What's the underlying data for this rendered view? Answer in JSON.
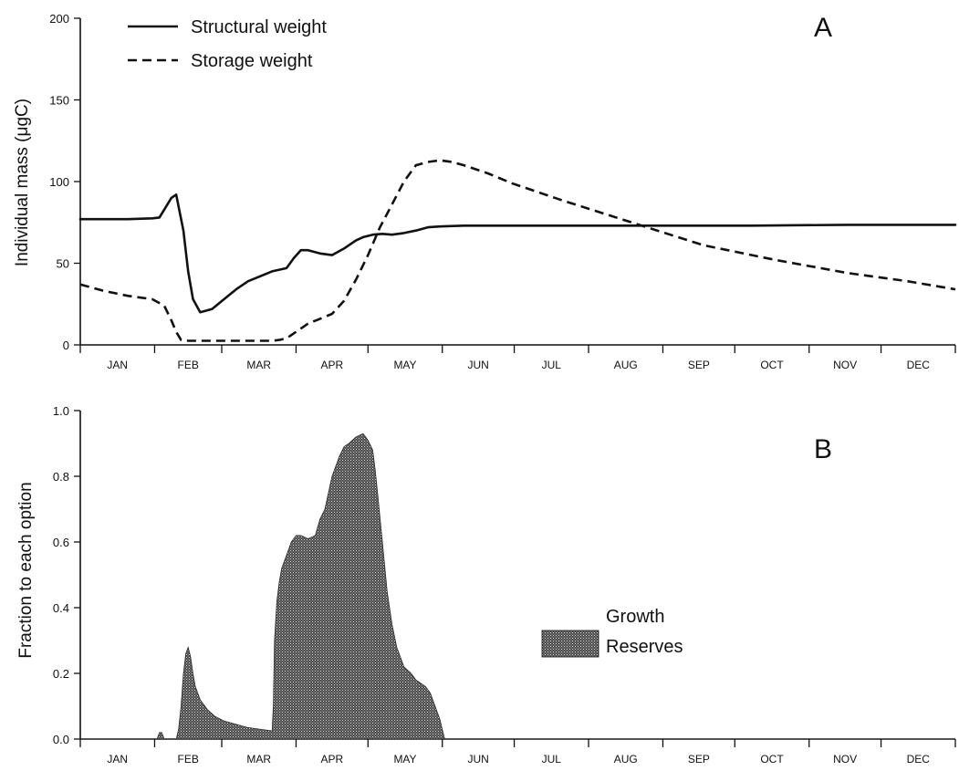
{
  "chart_data": [
    {
      "type": "line",
      "panel_label": "A",
      "ylabel": "Individual mass (μgC)",
      "xlabel": "",
      "ylim": [
        0,
        200
      ],
      "yticks": [
        "0",
        "50",
        "100",
        "150",
        "200"
      ],
      "ytick_values": [
        0,
        50,
        100,
        150,
        200
      ],
      "xlim": [
        0,
        365
      ],
      "x_units": "day of year",
      "x_month_labels": [
        "JAN",
        "FEB",
        "MAR",
        "APR",
        "MAY",
        "JUN",
        "JUL",
        "AUG",
        "SEP",
        "OCT",
        "NOV",
        "DEC"
      ],
      "legend_position": "top-left",
      "grid": false,
      "series": [
        {
          "name": "Structural weight",
          "style": "solid",
          "x": [
            0,
            10,
            20,
            30,
            33,
            38,
            40,
            43,
            45,
            47,
            50,
            55,
            60,
            65,
            70,
            75,
            80,
            86,
            89,
            92,
            95,
            100,
            105,
            110,
            115,
            118,
            122,
            126,
            130,
            135,
            140,
            145,
            150,
            160,
            180,
            200,
            240,
            280,
            320,
            365
          ],
          "y": [
            77,
            77,
            77,
            77.5,
            78,
            90,
            92,
            70,
            45,
            28,
            20,
            22,
            28,
            34,
            39,
            42,
            45,
            47,
            53,
            58,
            58,
            56,
            55,
            59,
            64,
            66,
            67.5,
            68,
            67.5,
            68.5,
            70,
            72,
            72.5,
            73,
            73,
            73,
            73,
            73,
            73.5,
            73.5
          ]
        },
        {
          "name": "Storage weight",
          "style": "dashed",
          "x": [
            0,
            10,
            20,
            30,
            35,
            38,
            40,
            42,
            45,
            50,
            60,
            70,
            80,
            83,
            86,
            90,
            95,
            100,
            105,
            110,
            115,
            120,
            125,
            130,
            135,
            140,
            145,
            150,
            155,
            160,
            170,
            180,
            200,
            230,
            260,
            290,
            320,
            345,
            365
          ],
          "y": [
            37,
            33,
            30,
            28,
            24,
            15,
            8,
            3,
            2.5,
            2.5,
            2.5,
            2.5,
            2.5,
            3,
            4,
            8,
            13,
            16,
            19,
            27,
            40,
            55,
            72,
            86,
            100,
            110,
            112,
            113,
            112,
            110,
            105,
            99,
            89,
            75,
            61,
            52,
            44,
            39,
            34
          ]
        }
      ]
    },
    {
      "type": "area",
      "panel_label": "B",
      "ylabel": "Fraction to each option",
      "xlabel": "",
      "ylim": [
        0,
        1
      ],
      "yticks": [
        "0.0",
        "0.2",
        "0.4",
        "0.6",
        "0.8",
        "1.0"
      ],
      "ytick_values": [
        0,
        0.2,
        0.4,
        0.6,
        0.8,
        1.0
      ],
      "xlim": [
        0,
        365
      ],
      "x_units": "day of year",
      "x_month_labels": [
        "JAN",
        "FEB",
        "MAR",
        "APR",
        "MAY",
        "JUN",
        "JUL",
        "AUG",
        "SEP",
        "OCT",
        "NOV",
        "DEC"
      ],
      "legend_position": "center-right",
      "legend_title": "Growth",
      "grid": false,
      "series": [
        {
          "name": "Reserves",
          "style": "stippled-fill",
          "x": [
            0,
            32,
            33,
            34,
            35,
            36,
            40,
            41,
            42,
            43,
            44,
            45,
            46,
            47,
            48,
            50,
            53,
            56,
            60,
            65,
            70,
            75,
            80,
            80.5,
            81,
            82,
            83,
            84,
            86,
            88,
            90,
            92,
            95,
            98,
            100,
            102,
            105,
            108,
            110,
            112,
            115,
            118,
            120,
            122,
            123,
            124,
            126,
            128,
            130,
            132,
            135,
            138,
            140,
            142,
            144,
            146,
            148,
            150,
            151,
            152,
            365
          ],
          "y": [
            0,
            0,
            0.02,
            0.02,
            0,
            0,
            0,
            0.03,
            0.1,
            0.2,
            0.26,
            0.28,
            0.25,
            0.2,
            0.16,
            0.12,
            0.09,
            0.07,
            0.055,
            0.045,
            0.035,
            0.03,
            0.025,
            0.1,
            0.3,
            0.42,
            0.48,
            0.52,
            0.56,
            0.6,
            0.62,
            0.62,
            0.61,
            0.62,
            0.67,
            0.7,
            0.8,
            0.86,
            0.89,
            0.9,
            0.92,
            0.93,
            0.91,
            0.88,
            0.82,
            0.75,
            0.6,
            0.45,
            0.35,
            0.28,
            0.22,
            0.2,
            0.18,
            0.17,
            0.16,
            0.14,
            0.1,
            0.06,
            0.03,
            0,
            0
          ]
        }
      ]
    }
  ]
}
